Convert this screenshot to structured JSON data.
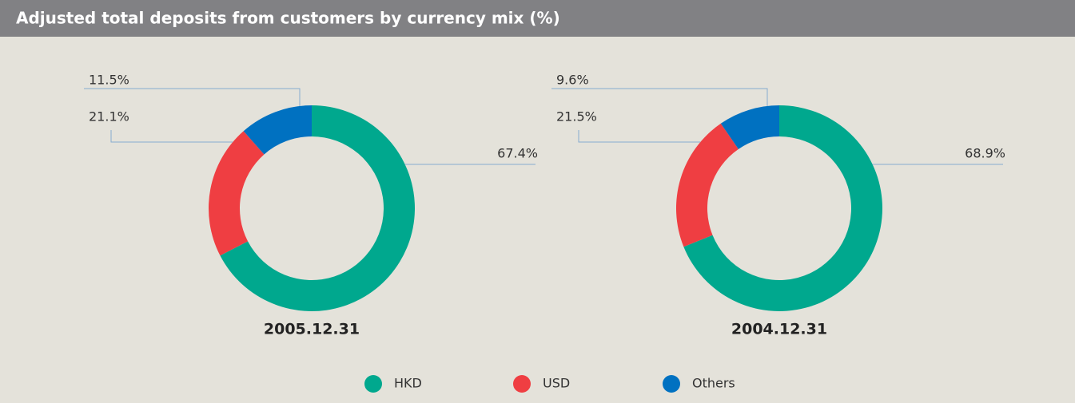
{
  "title": "Adjusted total deposits from customers by currency mix (%)",
  "chart_data": [
    {
      "type": "pie",
      "donut": true,
      "title": "2005.12.31",
      "categories": [
        "HKD",
        "USD",
        "Others"
      ],
      "values": [
        67.4,
        21.1,
        11.5
      ],
      "value_labels": [
        "67.4%",
        "21.1%",
        "11.5%"
      ],
      "colors": [
        "#00a88e",
        "#ef3e42",
        "#0071c1"
      ]
    },
    {
      "type": "pie",
      "donut": true,
      "title": "2004.12.31",
      "categories": [
        "HKD",
        "USD",
        "Others"
      ],
      "values": [
        68.9,
        21.5,
        9.6
      ],
      "value_labels": [
        "68.9%",
        "21.5%",
        "9.6%"
      ],
      "colors": [
        "#00a88e",
        "#ef3e42",
        "#0071c1"
      ]
    }
  ]
}
